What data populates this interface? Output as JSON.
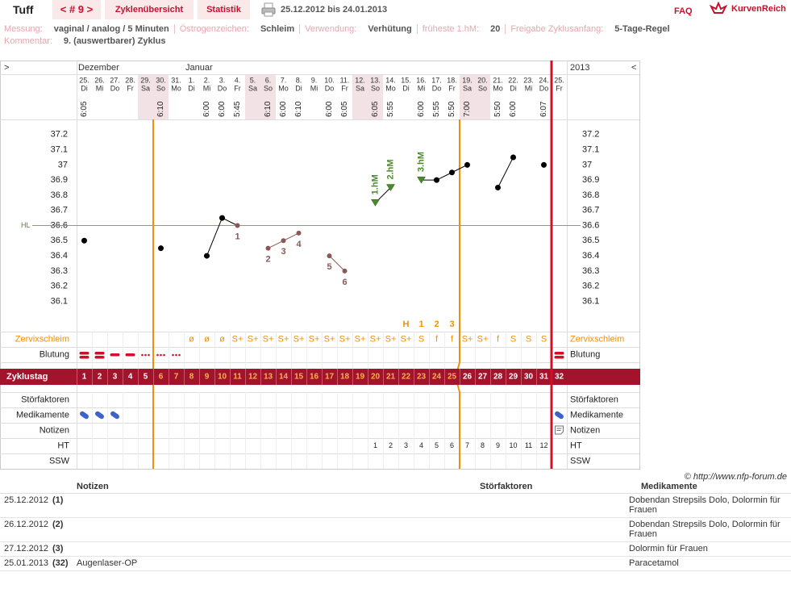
{
  "header": {
    "user": "Tuff",
    "cycle_nav": "< # 9 >",
    "tabs": [
      "Zyklenübersicht",
      "Statistik"
    ],
    "period": "25.12.2012 bis 24.01.2013",
    "faq": "FAQ",
    "brand": "KurvenReich"
  },
  "info": {
    "fields": [
      {
        "label": "Messung:",
        "value": "vaginal / analog / 5 Minuten"
      },
      {
        "label": "Östrogenzeichen:",
        "value": "Schleim"
      },
      {
        "label": "Verwendung:",
        "value": "Verhütung"
      },
      {
        "label": "früheste 1.hM:",
        "value": "20"
      },
      {
        "label": "Freigabe Zyklusanfang:",
        "value": "5-Tage-Regel"
      }
    ],
    "comment_label": "Kommentar:",
    "comment": "9. (auswertbarer) Zyklus"
  },
  "chart_data": {
    "type": "line",
    "nav_left": ">",
    "nav_right": "<",
    "months": [
      "Dezember",
      "Januar"
    ],
    "year": "2013",
    "days": [
      "25.",
      "26.",
      "27.",
      "28.",
      "29.",
      "30.",
      "31.",
      "1.",
      "2.",
      "3.",
      "4.",
      "5.",
      "6.",
      "7.",
      "8.",
      "9.",
      "10.",
      "11.",
      "12.",
      "13.",
      "14.",
      "15.",
      "16.",
      "17.",
      "18.",
      "19.",
      "20.",
      "21.",
      "22.",
      "23.",
      "24.",
      "25."
    ],
    "weekdays": [
      "Di",
      "Mi",
      "Do",
      "Fr",
      "Sa",
      "So",
      "Mo",
      "Di",
      "Mi",
      "Do",
      "Fr",
      "Sa",
      "So",
      "Mo",
      "Di",
      "Mi",
      "Do",
      "Fr",
      "Sa",
      "So",
      "Mo",
      "Di",
      "Mi",
      "Do",
      "Fr",
      "Sa",
      "So",
      "Mo",
      "Di",
      "Mi",
      "Do",
      "Fr"
    ],
    "times": [
      "6:05",
      null,
      null,
      null,
      null,
      "6:10",
      null,
      null,
      "6:00",
      "6:00",
      "5:45",
      null,
      "6:10",
      "6:00",
      "6:10",
      null,
      "6:00",
      "6:05",
      null,
      "6:05",
      "5:55",
      null,
      "6:00",
      "5:55",
      "5:50",
      "7:00",
      null,
      "5:50",
      "6:00",
      null,
      "6:07",
      null
    ],
    "values": [
      36.5,
      null,
      null,
      null,
      null,
      36.45,
      null,
      null,
      36.4,
      36.65,
      36.6,
      null,
      36.45,
      36.5,
      36.55,
      null,
      36.4,
      36.3,
      null,
      36.75,
      36.85,
      null,
      36.9,
      36.9,
      36.95,
      37.0,
      null,
      36.85,
      37.05,
      null,
      37.0,
      null
    ],
    "discarded_labels": [
      null,
      null,
      null,
      null,
      null,
      null,
      null,
      null,
      null,
      null,
      "1",
      null,
      "2",
      "3",
      "4",
      null,
      "5",
      "6",
      null,
      null,
      null,
      null,
      null,
      null,
      null,
      null,
      null,
      null,
      null,
      null,
      null,
      null
    ],
    "hm_labels": [
      null,
      null,
      null,
      null,
      null,
      null,
      null,
      null,
      null,
      null,
      null,
      null,
      null,
      null,
      null,
      null,
      null,
      null,
      null,
      "1.hM",
      "2.hM",
      null,
      "3.hM",
      null,
      null,
      null,
      null,
      null,
      null,
      null,
      null,
      null
    ],
    "ylim": [
      35.9,
      37.3
    ],
    "yticks": [
      37.2,
      37.1,
      37,
      36.9,
      36.8,
      36.7,
      36.6,
      36.5,
      36.4,
      36.3,
      36.2,
      36.1
    ],
    "hl": {
      "label": "HL",
      "value": 36.6
    },
    "peak_marks": [
      null,
      null,
      null,
      null,
      null,
      null,
      null,
      null,
      null,
      null,
      null,
      null,
      null,
      null,
      null,
      null,
      null,
      null,
      null,
      null,
      null,
      "H",
      "1",
      "2",
      "3",
      null,
      null,
      null,
      null,
      null,
      null,
      null
    ],
    "cervix": [
      null,
      null,
      null,
      null,
      null,
      null,
      null,
      "ø",
      "ø",
      "ø",
      "S+",
      "S+",
      "S+",
      "S+",
      "S+",
      "S+",
      "S+",
      "S+",
      "S+",
      "S+",
      "S+",
      "S+",
      "S",
      "f",
      "f",
      "S+",
      "S+",
      "f",
      "S",
      "S",
      "S",
      null
    ],
    "row_labels": [
      "Zervixschleim",
      "Blutung",
      "Störfaktoren",
      "Medikamente",
      "Notizen",
      "HT",
      "SSW"
    ],
    "cycle_day_label": "Zyklustag",
    "cycle_days": [
      1,
      2,
      3,
      4,
      5,
      6,
      7,
      8,
      9,
      10,
      11,
      12,
      13,
      14,
      15,
      16,
      17,
      18,
      19,
      20,
      21,
      22,
      23,
      24,
      25,
      26,
      27,
      28,
      29,
      30,
      31,
      32
    ],
    "ht": [
      null,
      null,
      null,
      null,
      null,
      null,
      null,
      null,
      null,
      null,
      null,
      null,
      null,
      null,
      null,
      null,
      null,
      null,
      null,
      1,
      2,
      3,
      4,
      5,
      6,
      7,
      8,
      9,
      10,
      11,
      12,
      null
    ]
  },
  "credit": "© http://www.nfp-forum.de",
  "notes_table": {
    "columns": [
      "Notizen",
      "Störfaktoren",
      "Medikamente"
    ],
    "rows": [
      {
        "date": "25.12.2012",
        "day": "(1)",
        "note": null,
        "disturbance": null,
        "medication": "Dobendan Strepsils Dolo, Dolormin für Frauen"
      },
      {
        "date": "26.12.2012",
        "day": "(2)",
        "note": null,
        "disturbance": null,
        "medication": "Dobendan Strepsils Dolo, Dolormin für Frauen"
      },
      {
        "date": "27.12.2012",
        "day": "(3)",
        "note": null,
        "disturbance": null,
        "medication": "Dolormin für Frauen"
      },
      {
        "date": "25.01.2013",
        "day": "(32)",
        "note": "Augenlaser-OP",
        "disturbance": null,
        "medication": "Paracetamol"
      }
    ]
  }
}
